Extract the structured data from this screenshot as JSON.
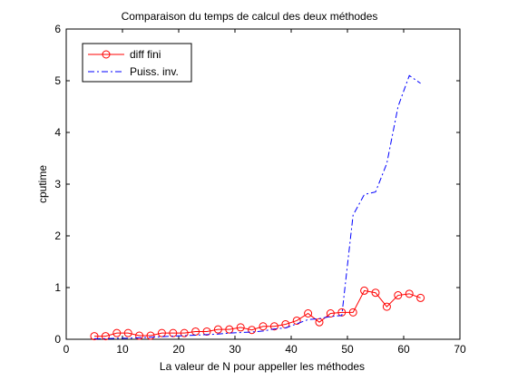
{
  "chart_data": {
    "type": "line",
    "title": "Comparaison du temps de calcul des deux méthodes",
    "xlabel": "La valeur de N pour appeller les méthodes",
    "ylabel": "cputime",
    "xlim": [
      0,
      70
    ],
    "ylim": [
      0,
      6
    ],
    "xticks": [
      "0",
      "10",
      "20",
      "30",
      "40",
      "50",
      "60",
      "70"
    ],
    "yticks": [
      "0",
      "1",
      "2",
      "3",
      "4",
      "5",
      "6"
    ],
    "grid": false,
    "legend_position": "top-left",
    "series": [
      {
        "name": "diff fini",
        "color": "#ff0000",
        "style": "solid-circle-markers",
        "x": [
          5,
          7,
          9,
          11,
          13,
          15,
          17,
          19,
          21,
          23,
          25,
          27,
          29,
          31,
          33,
          35,
          37,
          39,
          41,
          43,
          45,
          47,
          49,
          51,
          53,
          55,
          57,
          59,
          61,
          63
        ],
        "y": [
          0.06,
          0.06,
          0.12,
          0.12,
          0.07,
          0.07,
          0.12,
          0.12,
          0.12,
          0.15,
          0.15,
          0.19,
          0.19,
          0.23,
          0.18,
          0.25,
          0.25,
          0.29,
          0.36,
          0.5,
          0.33,
          0.5,
          0.52,
          0.52,
          0.94,
          0.9,
          0.63,
          0.85,
          0.88,
          0.8
        ]
      },
      {
        "name": "Puiss. inv.",
        "color": "#0000ff",
        "style": "dash-dot",
        "x": [
          5,
          7,
          9,
          11,
          13,
          15,
          17,
          19,
          21,
          23,
          25,
          27,
          29,
          31,
          33,
          35,
          37,
          39,
          41,
          43,
          45,
          47,
          49,
          51,
          53,
          55,
          57,
          59,
          61,
          63
        ],
        "y": [
          0.01,
          0.01,
          0.02,
          0.02,
          0.03,
          0.04,
          0.05,
          0.06,
          0.07,
          0.08,
          0.09,
          0.1,
          0.12,
          0.13,
          0.14,
          0.16,
          0.2,
          0.22,
          0.3,
          0.38,
          0.4,
          0.44,
          0.46,
          2.4,
          2.8,
          2.85,
          3.4,
          4.5,
          5.1,
          4.95
        ]
      }
    ]
  }
}
